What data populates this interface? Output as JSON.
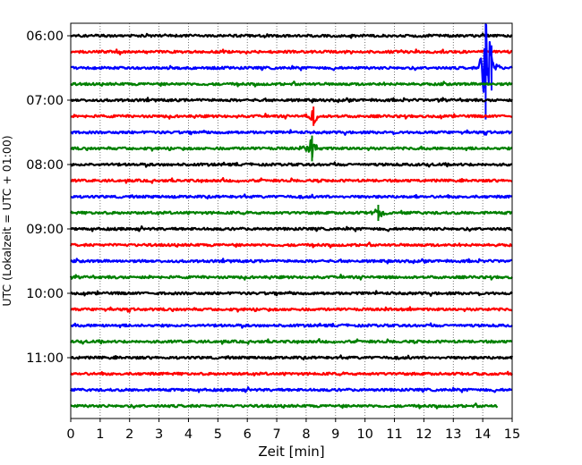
{
  "chart_data": {
    "type": "line",
    "title": "",
    "xlabel": "Zeit  [min]",
    "ylabel": "UTC (Lokalzeit = UTC + 01:00)",
    "xlim": [
      0,
      15
    ],
    "x_ticks": [
      "0",
      "1",
      "2",
      "3",
      "4",
      "5",
      "6",
      "7",
      "8",
      "9",
      "10",
      "11",
      "12",
      "13",
      "14",
      "15"
    ],
    "y_ticks": [
      "06:00",
      "07:00",
      "08:00",
      "09:00",
      "10:00",
      "11:00"
    ],
    "grid": "vertical dotted lines at each minute",
    "trace_interval_minutes": 15,
    "color_cycle": [
      "#000000",
      "#ff0000",
      "#0000ff",
      "#008000"
    ],
    "series": [
      {
        "start": "06:00",
        "color": "#000000"
      },
      {
        "start": "06:15",
        "color": "#ff0000"
      },
      {
        "start": "06:30",
        "color": "#0000ff",
        "events": [
          {
            "minute": 14.1,
            "amplitude": 3.2
          },
          {
            "minute": 14.3,
            "amplitude": 1.4
          }
        ]
      },
      {
        "start": "06:45",
        "color": "#008000"
      },
      {
        "start": "07:00",
        "color": "#000000"
      },
      {
        "start": "07:15",
        "color": "#ff0000",
        "events": [
          {
            "minute": 8.25,
            "amplitude": 0.6
          }
        ]
      },
      {
        "start": "07:30",
        "color": "#0000ff"
      },
      {
        "start": "07:45",
        "color": "#008000",
        "events": [
          {
            "minute": 8.2,
            "amplitude": 0.8
          }
        ]
      },
      {
        "start": "08:00",
        "color": "#000000"
      },
      {
        "start": "08:15",
        "color": "#ff0000"
      },
      {
        "start": "08:30",
        "color": "#0000ff"
      },
      {
        "start": "08:45",
        "color": "#008000",
        "events": [
          {
            "minute": 10.45,
            "amplitude": 0.5
          }
        ]
      },
      {
        "start": "09:00",
        "color": "#000000"
      },
      {
        "start": "09:15",
        "color": "#ff0000"
      },
      {
        "start": "09:30",
        "color": "#0000ff"
      },
      {
        "start": "09:45",
        "color": "#008000"
      },
      {
        "start": "10:00",
        "color": "#000000"
      },
      {
        "start": "10:15",
        "color": "#ff0000"
      },
      {
        "start": "10:30",
        "color": "#0000ff"
      },
      {
        "start": "10:45",
        "color": "#008000"
      },
      {
        "start": "11:00",
        "color": "#000000"
      },
      {
        "start": "11:15",
        "color": "#ff0000"
      },
      {
        "start": "11:30",
        "color": "#0000ff"
      },
      {
        "start": "11:45",
        "color": "#008000",
        "end_minute": 14.5
      }
    ]
  }
}
